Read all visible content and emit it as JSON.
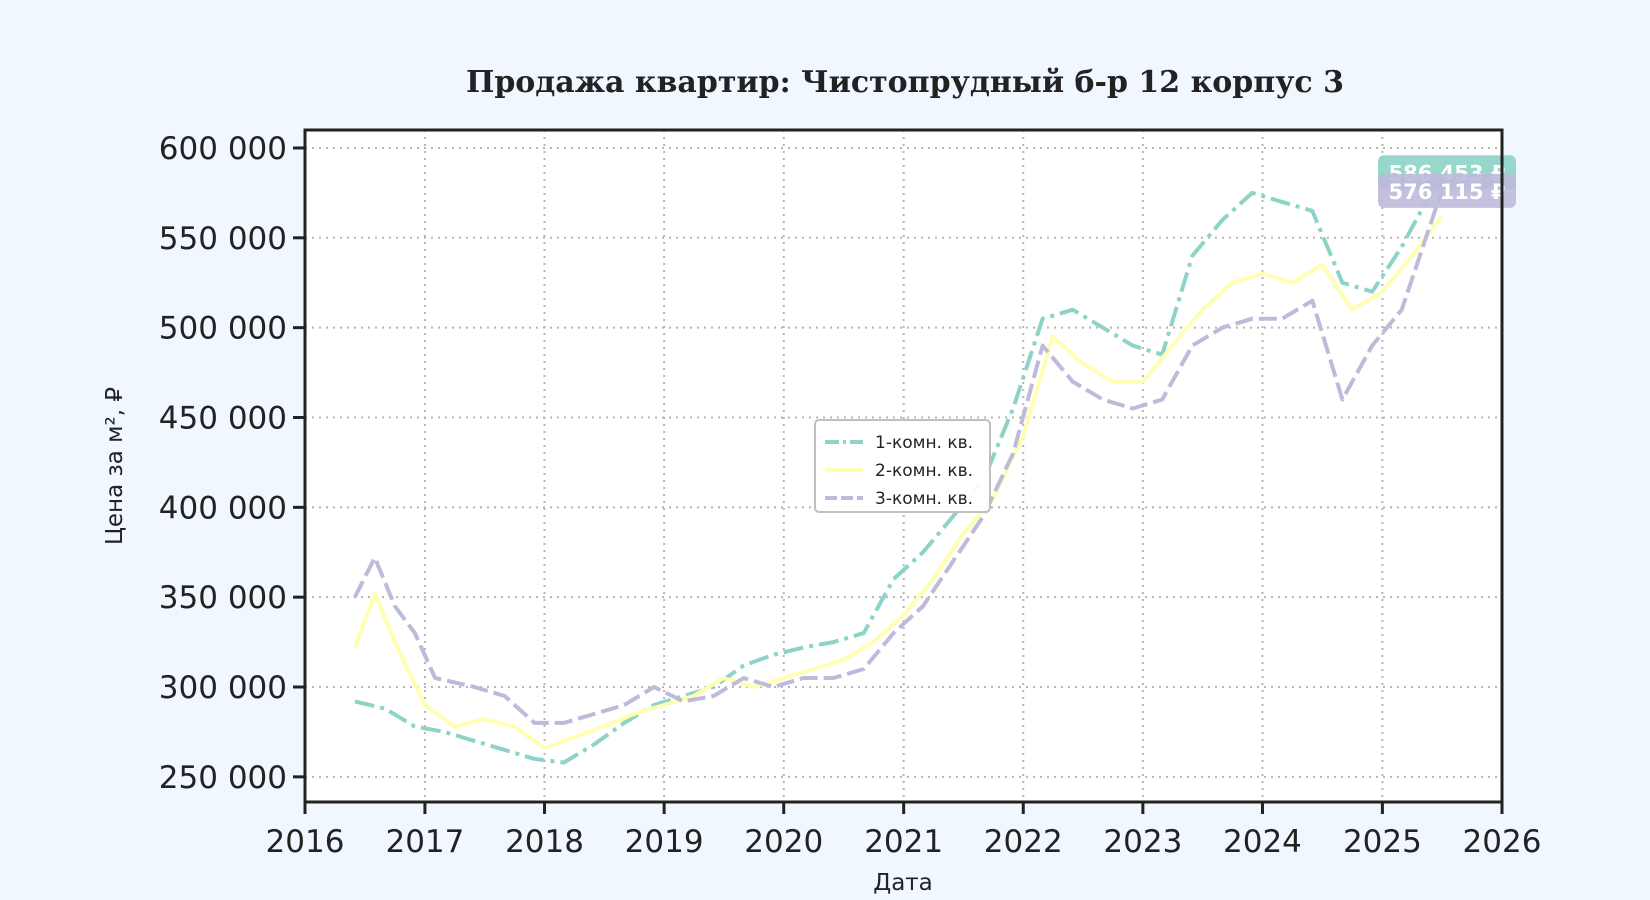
{
  "colors": {
    "background": "#f0f7fe",
    "plot_background": "#ffffff",
    "series": [
      "#8dd3c7",
      "#ffffb3",
      "#bebada"
    ]
  },
  "chart_data": {
    "type": "line",
    "title": "Продажа квартир: Чистопрудный б-р 12 корпус 3",
    "xlabel": "Дата",
    "ylabel": "Цена за м², ₽",
    "xlim": [
      "2016-01-01",
      "2026-01-01"
    ],
    "ylim": [
      236000,
      610000
    ],
    "x_ticks": [
      "2016-01-01",
      "2017-01-01",
      "2018-01-01",
      "2019-01-01",
      "2020-01-01",
      "2021-01-01",
      "2022-01-01",
      "2023-01-01",
      "2024-01-01",
      "2025-01-01",
      "2026-01-01"
    ],
    "x_tick_labels": [
      "2016",
      "2017",
      "2018",
      "2019",
      "2020",
      "2021",
      "2022",
      "2023",
      "2024",
      "2025",
      "2026"
    ],
    "y_ticks": [
      250000,
      300000,
      350000,
      400000,
      450000,
      500000,
      550000,
      600000
    ],
    "y_tick_labels": [
      "250 000",
      "300 000",
      "350 000",
      "400 000",
      "450 000",
      "500 000",
      "550 000",
      "600 000"
    ],
    "grid": true,
    "legend_position": "center",
    "series": [
      {
        "name": "1-комн. кв.",
        "dash": "dashdot",
        "end_label": "586 453 ₽",
        "points": [
          [
            "2016-06-01",
            292000
          ],
          [
            "2016-09-01",
            288000
          ],
          [
            "2016-12-01",
            278000
          ],
          [
            "2017-03-01",
            275000
          ],
          [
            "2017-06-01",
            270000
          ],
          [
            "2017-09-01",
            265000
          ],
          [
            "2017-12-01",
            260000
          ],
          [
            "2018-03-01",
            258000
          ],
          [
            "2018-06-01",
            268000
          ],
          [
            "2018-09-01",
            280000
          ],
          [
            "2018-12-01",
            290000
          ],
          [
            "2019-03-01",
            295000
          ],
          [
            "2019-06-01",
            300000
          ],
          [
            "2019-09-01",
            312000
          ],
          [
            "2019-12-01",
            318000
          ],
          [
            "2020-03-01",
            322000
          ],
          [
            "2020-06-01",
            325000
          ],
          [
            "2020-09-01",
            330000
          ],
          [
            "2020-12-01",
            360000
          ],
          [
            "2021-03-01",
            375000
          ],
          [
            "2021-06-01",
            395000
          ],
          [
            "2021-09-01",
            415000
          ],
          [
            "2021-12-01",
            455000
          ],
          [
            "2022-03-01",
            505000
          ],
          [
            "2022-06-01",
            510000
          ],
          [
            "2022-09-01",
            500000
          ],
          [
            "2022-12-01",
            490000
          ],
          [
            "2023-03-01",
            485000
          ],
          [
            "2023-06-01",
            540000
          ],
          [
            "2023-09-01",
            560000
          ],
          [
            "2023-12-01",
            575000
          ],
          [
            "2024-03-01",
            570000
          ],
          [
            "2024-06-01",
            565000
          ],
          [
            "2024-09-01",
            525000
          ],
          [
            "2024-12-01",
            520000
          ],
          [
            "2025-03-01",
            545000
          ],
          [
            "2025-07-01",
            586453
          ]
        ]
      },
      {
        "name": "2-комн. кв.",
        "dash": "solid",
        "end_label": "",
        "points": [
          [
            "2016-06-01",
            322000
          ],
          [
            "2016-08-01",
            352000
          ],
          [
            "2016-10-01",
            325000
          ],
          [
            "2017-01-01",
            290000
          ],
          [
            "2017-04-01",
            278000
          ],
          [
            "2017-07-01",
            282000
          ],
          [
            "2017-10-01",
            278000
          ],
          [
            "2018-01-01",
            266000
          ],
          [
            "2018-04-01",
            272000
          ],
          [
            "2018-07-01",
            278000
          ],
          [
            "2018-10-01",
            285000
          ],
          [
            "2019-01-01",
            290000
          ],
          [
            "2019-04-01",
            295000
          ],
          [
            "2019-07-01",
            305000
          ],
          [
            "2019-10-01",
            300000
          ],
          [
            "2020-01-01",
            305000
          ],
          [
            "2020-04-01",
            310000
          ],
          [
            "2020-07-01",
            315000
          ],
          [
            "2020-10-01",
            325000
          ],
          [
            "2021-01-01",
            340000
          ],
          [
            "2021-04-01",
            360000
          ],
          [
            "2021-07-01",
            385000
          ],
          [
            "2021-10-01",
            405000
          ],
          [
            "2022-01-01",
            440000
          ],
          [
            "2022-04-01",
            495000
          ],
          [
            "2022-07-01",
            480000
          ],
          [
            "2022-10-01",
            470000
          ],
          [
            "2023-01-01",
            470000
          ],
          [
            "2023-04-01",
            490000
          ],
          [
            "2023-07-01",
            510000
          ],
          [
            "2023-10-01",
            525000
          ],
          [
            "2024-01-01",
            530000
          ],
          [
            "2024-04-01",
            525000
          ],
          [
            "2024-07-01",
            535000
          ],
          [
            "2024-10-01",
            510000
          ],
          [
            "2025-01-01",
            520000
          ],
          [
            "2025-04-01",
            540000
          ],
          [
            "2025-07-01",
            562000
          ]
        ]
      },
      {
        "name": "3-комн. кв.",
        "dash": "dashed",
        "end_label": "576 115 ₽",
        "points": [
          [
            "2016-06-01",
            350000
          ],
          [
            "2016-08-01",
            372000
          ],
          [
            "2016-10-01",
            345000
          ],
          [
            "2016-12-01",
            330000
          ],
          [
            "2017-02-01",
            305000
          ],
          [
            "2017-06-01",
            300000
          ],
          [
            "2017-09-01",
            295000
          ],
          [
            "2017-12-01",
            280000
          ],
          [
            "2018-03-01",
            280000
          ],
          [
            "2018-06-01",
            285000
          ],
          [
            "2018-09-01",
            290000
          ],
          [
            "2018-12-01",
            300000
          ],
          [
            "2019-03-01",
            292000
          ],
          [
            "2019-06-01",
            295000
          ],
          [
            "2019-09-01",
            305000
          ],
          [
            "2019-12-01",
            300000
          ],
          [
            "2020-03-01",
            305000
          ],
          [
            "2020-06-01",
            305000
          ],
          [
            "2020-09-01",
            310000
          ],
          [
            "2020-12-01",
            330000
          ],
          [
            "2021-03-01",
            345000
          ],
          [
            "2021-06-01",
            370000
          ],
          [
            "2021-09-01",
            395000
          ],
          [
            "2021-12-01",
            430000
          ],
          [
            "2022-03-01",
            490000
          ],
          [
            "2022-06-01",
            470000
          ],
          [
            "2022-09-01",
            460000
          ],
          [
            "2022-12-01",
            455000
          ],
          [
            "2023-03-01",
            460000
          ],
          [
            "2023-06-01",
            490000
          ],
          [
            "2023-09-01",
            500000
          ],
          [
            "2023-12-01",
            505000
          ],
          [
            "2024-03-01",
            505000
          ],
          [
            "2024-06-01",
            515000
          ],
          [
            "2024-09-01",
            460000
          ],
          [
            "2024-12-01",
            490000
          ],
          [
            "2025-03-01",
            510000
          ],
          [
            "2025-07-01",
            576115
          ]
        ]
      }
    ]
  }
}
